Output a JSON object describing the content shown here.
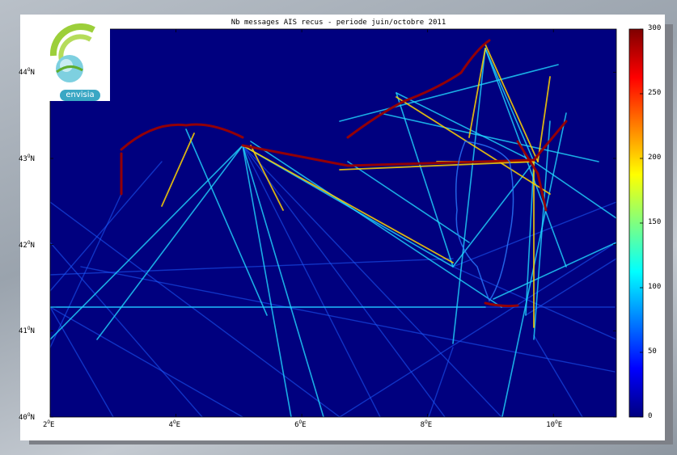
{
  "chart_data": {
    "type": "heatmap",
    "title": "Nb messages AIS recus - periode juin/octobre 2011",
    "x_ticks": [
      {
        "deg": "2",
        "unit": "E",
        "lon": 2
      },
      {
        "deg": "4",
        "unit": "E",
        "lon": 4
      },
      {
        "deg": "6",
        "unit": "E",
        "lon": 6
      },
      {
        "deg": "8",
        "unit": "E",
        "lon": 8
      },
      {
        "deg": "10",
        "unit": "E",
        "lon": 10
      }
    ],
    "y_ticks": [
      {
        "deg": "44",
        "unit": "N",
        "lat": 44
      },
      {
        "deg": "43",
        "unit": "N",
        "lat": 43
      },
      {
        "deg": "42",
        "unit": "N",
        "lat": 42
      },
      {
        "deg": "41",
        "unit": "N",
        "lat": 41
      },
      {
        "deg": "40",
        "unit": "N",
        "lat": 40
      }
    ],
    "xlim": [
      2,
      11
    ],
    "ylim": [
      40,
      44.5
    ],
    "colorbar": {
      "ticks": [
        "300",
        "250",
        "200",
        "150",
        "100",
        "50",
        "0"
      ],
      "range": [
        0,
        300
      ],
      "colormap": "jet"
    }
  },
  "logo": {
    "text": "envisia"
  },
  "colors": {
    "sea": "#00007f",
    "high_density": "#7f0000"
  }
}
